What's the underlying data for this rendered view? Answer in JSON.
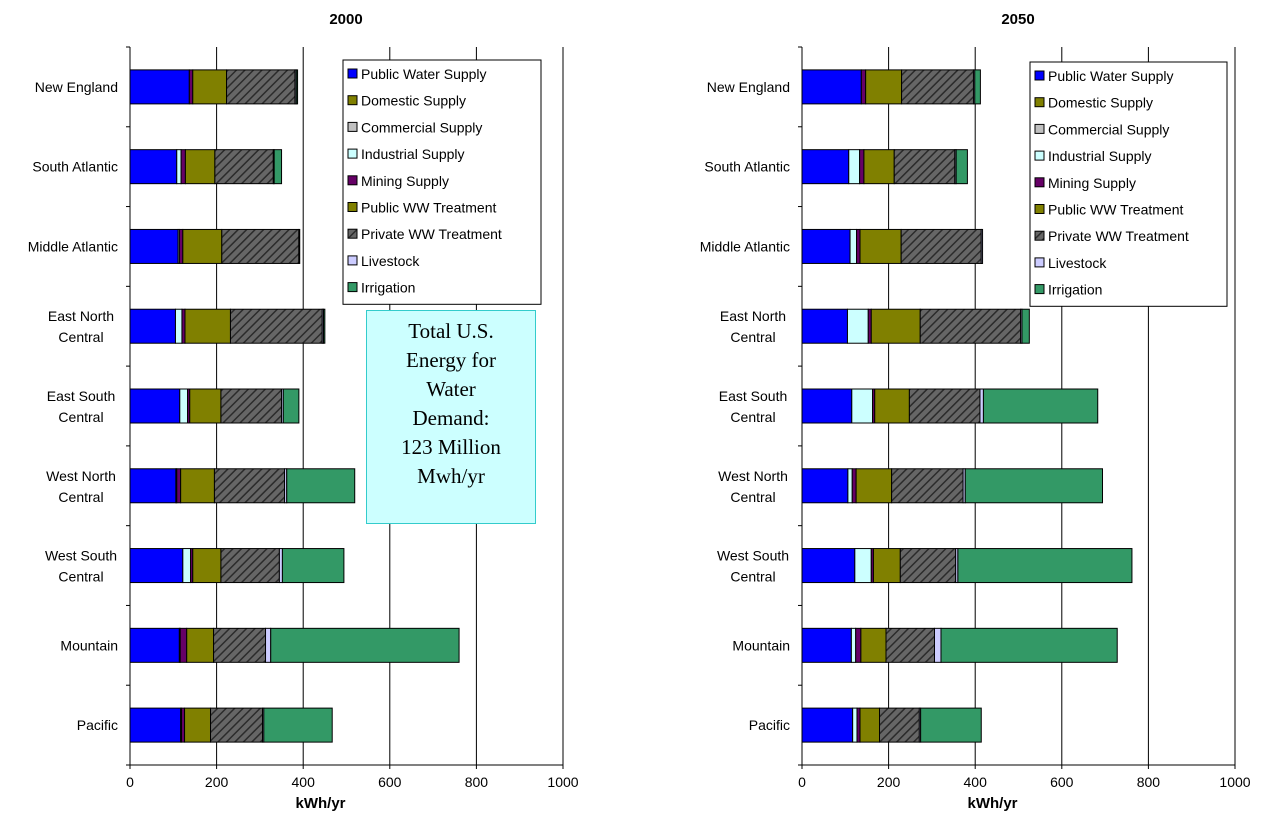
{
  "colors": {
    "Public Water Supply": "#0000ff",
    "Domestic Supply": "#808000",
    "Commercial  Supply": "#c0c0c0",
    "Industrial  Supply": "#ccffff",
    "Mining  Supply": "#660066",
    "Public WW Treatment": "#808000",
    "Private WW Treatment": "#666666",
    "Livestock": "#ccccff",
    "Irrigation": "#339966"
  },
  "annotation": {
    "lines": [
      "Total U.S.",
      "Energy for",
      "Water",
      "Demand:",
      "123 Million",
      "Mwh/yr"
    ]
  },
  "chart_data": [
    {
      "type": "bar",
      "orientation": "horizontal",
      "stacked": true,
      "title": "2000",
      "xlabel": "kWh/yr",
      "ylabel": "",
      "xlim": [
        0,
        1000
      ],
      "xticks": [
        0,
        200,
        400,
        600,
        800,
        1000
      ],
      "grid": true,
      "legend": "top-right",
      "categories": [
        [
          "New England"
        ],
        [
          "South Atlantic"
        ],
        [
          "Middle Atlantic"
        ],
        [
          "East North",
          "Central"
        ],
        [
          "East South",
          "Central"
        ],
        [
          "West North",
          "Central"
        ],
        [
          "West South",
          "Central"
        ],
        [
          "Mountain"
        ],
        [
          "Pacific"
        ]
      ],
      "series": [
        {
          "name": "Public Water Supply",
          "values": [
            137,
            108,
            111,
            105,
            115,
            106,
            122,
            114,
            117
          ]
        },
        {
          "name": "Domestic Supply",
          "values": [
            0,
            0,
            0,
            0,
            0,
            0,
            0,
            0,
            0
          ]
        },
        {
          "name": "Commercial  Supply",
          "values": [
            0,
            0,
            0,
            0,
            0,
            0,
            0,
            0,
            0
          ]
        },
        {
          "name": "Industrial  Supply",
          "values": [
            0,
            10,
            3,
            15,
            18,
            2,
            18,
            2,
            2
          ]
        },
        {
          "name": "Mining  Supply",
          "values": [
            8,
            10,
            8,
            7,
            5,
            9,
            5,
            15,
            7
          ]
        },
        {
          "name": "Public WW Treatment",
          "values": [
            78,
            68,
            90,
            105,
            72,
            78,
            65,
            62,
            60
          ]
        },
        {
          "name": "Private WW Treatment",
          "values": [
            158,
            135,
            178,
            212,
            140,
            162,
            135,
            120,
            120
          ]
        },
        {
          "name": "Livestock",
          "values": [
            3,
            2,
            2,
            3,
            4,
            5,
            7,
            12,
            3
          ]
        },
        {
          "name": "Irrigation",
          "values": [
            3,
            17,
            0,
            3,
            36,
            157,
            142,
            435,
            158
          ]
        }
      ]
    },
    {
      "type": "bar",
      "orientation": "horizontal",
      "stacked": true,
      "title": "2050",
      "xlabel": "kWh/yr",
      "ylabel": "",
      "xlim": [
        0,
        1000
      ],
      "xticks": [
        0,
        200,
        400,
        600,
        800,
        1000
      ],
      "grid": true,
      "legend": "top-right",
      "categories": [
        [
          "New England"
        ],
        [
          "South Atlantic"
        ],
        [
          "Middle Atlantic"
        ],
        [
          "East North",
          "Central"
        ],
        [
          "East South",
          "Central"
        ],
        [
          "West North",
          "Central"
        ],
        [
          "West South",
          "Central"
        ],
        [
          "Mountain"
        ],
        [
          "Pacific"
        ]
      ],
      "series": [
        {
          "name": "Public Water Supply",
          "values": [
            137,
            108,
            111,
            105,
            115,
            106,
            122,
            114,
            117
          ]
        },
        {
          "name": "Domestic Supply",
          "values": [
            0,
            0,
            0,
            0,
            0,
            0,
            0,
            0,
            0
          ]
        },
        {
          "name": "Commercial  Supply",
          "values": [
            0,
            0,
            0,
            0,
            0,
            0,
            0,
            0,
            0
          ]
        },
        {
          "name": "Industrial  Supply",
          "values": [
            0,
            25,
            15,
            48,
            48,
            10,
            38,
            10,
            10
          ]
        },
        {
          "name": "Mining  Supply",
          "values": [
            10,
            10,
            8,
            7,
            5,
            9,
            5,
            12,
            7
          ]
        },
        {
          "name": "Public WW Treatment",
          "values": [
            83,
            70,
            95,
            113,
            80,
            82,
            62,
            58,
            45
          ]
        },
        {
          "name": "Private WW Treatment",
          "values": [
            166,
            140,
            185,
            232,
            163,
            165,
            128,
            112,
            92
          ]
        },
        {
          "name": "Livestock",
          "values": [
            3,
            3,
            3,
            3,
            8,
            5,
            5,
            15,
            3
          ]
        },
        {
          "name": "Irrigation",
          "values": [
            13,
            26,
            0,
            17,
            264,
            317,
            402,
            407,
            140
          ]
        }
      ]
    }
  ]
}
